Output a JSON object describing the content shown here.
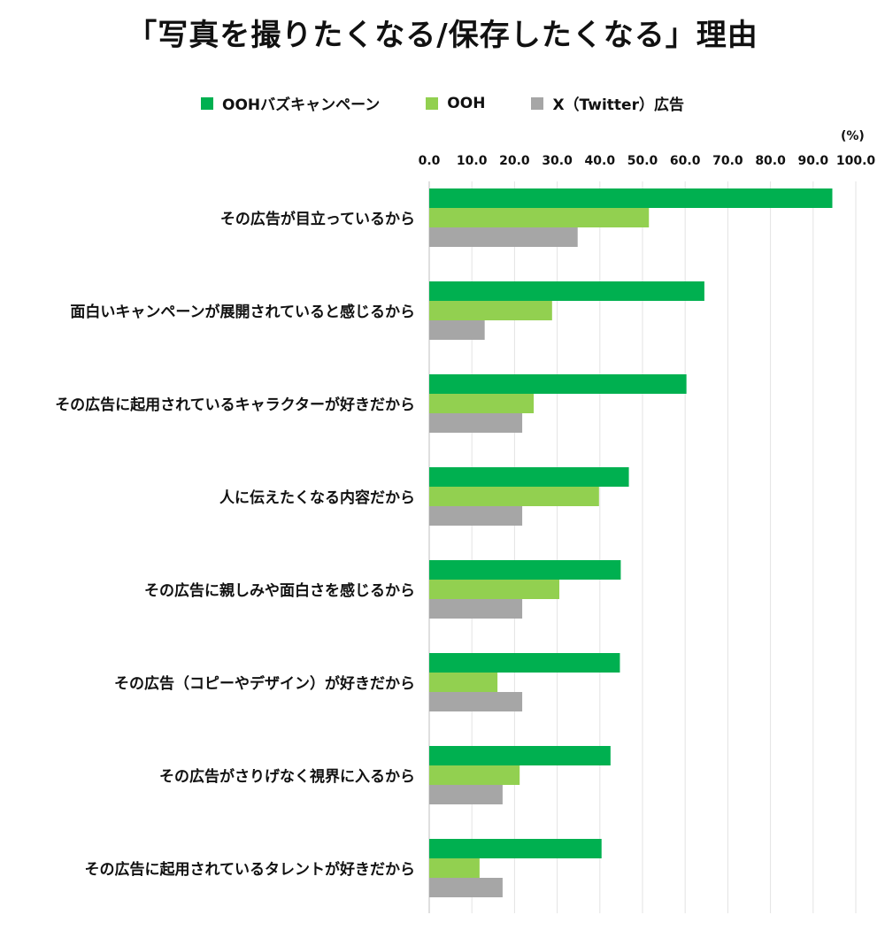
{
  "chart_data": {
    "type": "bar",
    "orientation": "horizontal",
    "title": "「写真を撮りたくなる/保存したくなる」理由",
    "unit_label": "(%)",
    "xlim": [
      0,
      100
    ],
    "ticks": [
      0,
      10,
      20,
      30,
      40,
      50,
      60,
      70,
      80,
      90,
      100
    ],
    "tick_labels": [
      "0.0",
      "10.0",
      "20.0",
      "30.0",
      "40.0",
      "50.0",
      "60.0",
      "70.0",
      "80.0",
      "90.0",
      "100.0"
    ],
    "grid": true,
    "legend_position": "top-center",
    "categories": [
      "その広告が目立っているから",
      "面白いキャンペーンが展開されていると感じるから",
      "その広告に起用されているキャラクターが好きだから",
      "人に伝えたくなる内容だから",
      "その広告に親しみや面白さを感じるから",
      "その広告（コピーやデザイン）が好きだから",
      "その広告がさりげなく視界に入るから",
      "その広告に起用されているタレントが好きだから"
    ],
    "series": [
      {
        "name": "OOHバズキャンペーン",
        "color": "#00b050",
        "values": [
          94.5,
          64.5,
          60.3,
          46.8,
          44.9,
          44.7,
          42.5,
          40.4
        ]
      },
      {
        "name": "OOH",
        "color": "#92d050",
        "values": [
          51.5,
          28.8,
          24.5,
          39.8,
          30.5,
          16.0,
          21.2,
          11.8
        ]
      },
      {
        "name": "X（Twitter）広告",
        "color": "#a6a6a6",
        "values": [
          34.8,
          13.0,
          21.8,
          21.8,
          21.8,
          21.8,
          17.2,
          17.2
        ]
      }
    ]
  }
}
